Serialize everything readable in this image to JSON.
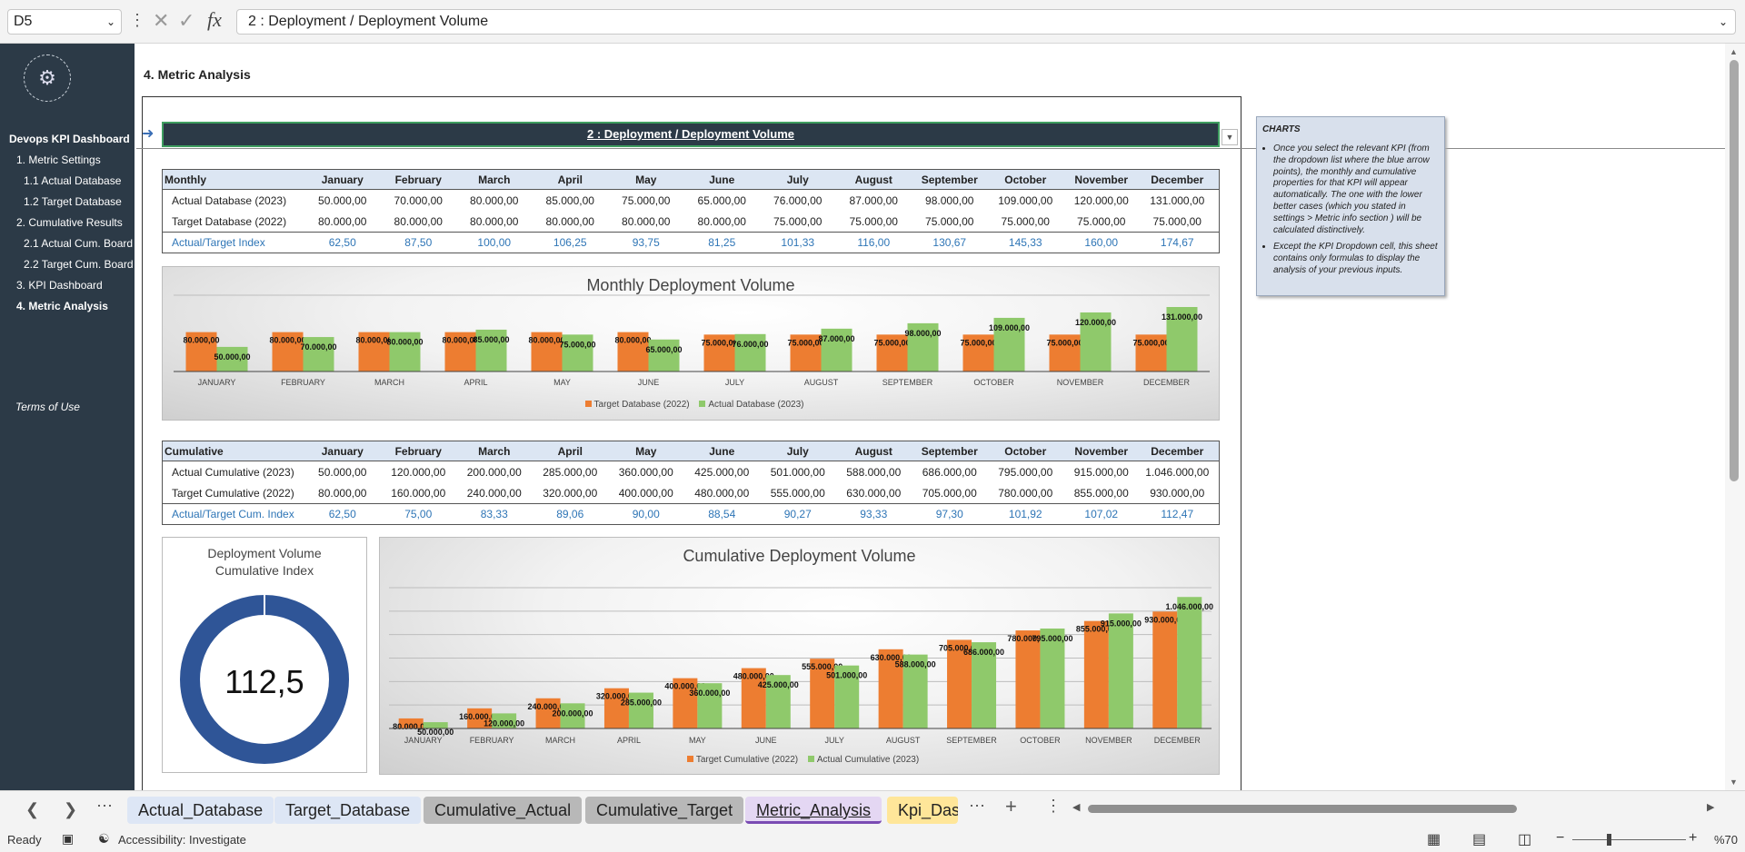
{
  "formula_bar": {
    "name_box": "D5",
    "formula": "2 : Deployment / Deployment Volume"
  },
  "sidebar": {
    "title": "Devops KPI Dashboard",
    "items": [
      {
        "label": "1. Metric Settings",
        "bold": false
      },
      {
        "label": "1.1 Actual Database",
        "bold": false
      },
      {
        "label": "1.2 Target Database",
        "bold": false
      },
      {
        "label": "2. Cumulative Results",
        "bold": false
      },
      {
        "label": "2.1 Actual Cum. Board",
        "bold": false
      },
      {
        "label": "2.2 Target Cum. Board",
        "bold": false
      },
      {
        "label": "3. KPI Dashboard",
        "bold": false
      },
      {
        "label": "4. Metric Analysis",
        "bold": true
      }
    ],
    "terms": "Terms of Use"
  },
  "page": {
    "title": "4. Metric Analysis",
    "kpi_selected": "2 : Deployment / Deployment Volume"
  },
  "months": [
    "January",
    "February",
    "March",
    "April",
    "May",
    "June",
    "July",
    "August",
    "September",
    "October",
    "November",
    "December"
  ],
  "monthly_table": {
    "header": "Monthly",
    "rows": [
      {
        "label": "Actual Database (2023)",
        "values": [
          "50.000,00",
          "70.000,00",
          "80.000,00",
          "85.000,00",
          "75.000,00",
          "65.000,00",
          "76.000,00",
          "87.000,00",
          "98.000,00",
          "109.000,00",
          "120.000,00",
          "131.000,00"
        ]
      },
      {
        "label": "Target Database (2022)",
        "values": [
          "80.000,00",
          "80.000,00",
          "80.000,00",
          "80.000,00",
          "80.000,00",
          "80.000,00",
          "75.000,00",
          "75.000,00",
          "75.000,00",
          "75.000,00",
          "75.000,00",
          "75.000,00"
        ]
      }
    ],
    "index": {
      "label": "Actual/Target Index",
      "values": [
        "62,50",
        "87,50",
        "100,00",
        "106,25",
        "93,75",
        "81,25",
        "101,33",
        "116,00",
        "130,67",
        "145,33",
        "160,00",
        "174,67"
      ]
    }
  },
  "cumulative_table": {
    "header": "Cumulative",
    "rows": [
      {
        "label": "Actual Cumulative (2023)",
        "values": [
          "50.000,00",
          "120.000,00",
          "200.000,00",
          "285.000,00",
          "360.000,00",
          "425.000,00",
          "501.000,00",
          "588.000,00",
          "686.000,00",
          "795.000,00",
          "915.000,00",
          "1.046.000,00"
        ]
      },
      {
        "label": "Target Cumulative (2022)",
        "values": [
          "80.000,00",
          "160.000,00",
          "240.000,00",
          "320.000,00",
          "400.000,00",
          "480.000,00",
          "555.000,00",
          "630.000,00",
          "705.000,00",
          "780.000,00",
          "855.000,00",
          "930.000,00"
        ]
      }
    ],
    "index": {
      "label": "Actual/Target Cum. Index",
      "values": [
        "62,50",
        "75,00",
        "83,33",
        "89,06",
        "90,00",
        "88,54",
        "90,27",
        "93,33",
        "97,30",
        "101,92",
        "107,02",
        "112,47"
      ]
    }
  },
  "chart_data": [
    {
      "type": "bar",
      "title": "Monthly Deployment Volume",
      "categories": [
        "JANUARY",
        "FEBRUARY",
        "MARCH",
        "APRIL",
        "MAY",
        "JUNE",
        "JULY",
        "AUGUST",
        "SEPTEMBER",
        "OCTOBER",
        "NOVEMBER",
        "DECEMBER"
      ],
      "series": [
        {
          "name": "Target Database (2022)",
          "color": "#ed7d31",
          "values": [
            80000,
            80000,
            80000,
            80000,
            80000,
            80000,
            75000,
            75000,
            75000,
            75000,
            75000,
            75000
          ],
          "labels": [
            "80.000,00",
            "80.000,00",
            "80.000,00",
            "80.000,00",
            "80.000,00",
            "80.000,00",
            "75.000,00",
            "75.000,00",
            "75.000,00",
            "75.000,00",
            "75.000,00",
            "75.000,00"
          ]
        },
        {
          "name": "Actual Database (2023)",
          "color": "#8fc96b",
          "values": [
            50000,
            70000,
            80000,
            85000,
            75000,
            65000,
            76000,
            87000,
            98000,
            109000,
            120000,
            131000
          ],
          "labels": [
            "50.000,00",
            "70.000,00",
            "80.000,00",
            "85.000,00",
            "75.000,00",
            "65.000,00",
            "76.000,00",
            "87.000,00",
            "98.000,00",
            "109.000,00",
            "120.000,00",
            "131.000,00"
          ]
        }
      ],
      "legend": "bottom"
    },
    {
      "type": "bar",
      "title": "Cumulative Deployment Volume",
      "categories": [
        "JANUARY",
        "FEBRUARY",
        "MARCH",
        "APRIL",
        "MAY",
        "JUNE",
        "JULY",
        "AUGUST",
        "SEPTEMBER",
        "OCTOBER",
        "NOVEMBER",
        "DECEMBER"
      ],
      "series": [
        {
          "name": "Target Cumulative (2022)",
          "color": "#ed7d31",
          "values": [
            80000,
            160000,
            240000,
            320000,
            400000,
            480000,
            555000,
            630000,
            705000,
            780000,
            855000,
            930000
          ],
          "labels": [
            "80.000,00",
            "160.000,00",
            "240.000,00",
            "320.000,00",
            "400.000,00",
            "480.000,00",
            "555.000,00",
            "630.000,00",
            "705.000,00",
            "780.000,00",
            "855.000,00",
            "930.000,00"
          ]
        },
        {
          "name": "Actual Cumulative (2023)",
          "color": "#8fc96b",
          "values": [
            50000,
            120000,
            200000,
            285000,
            360000,
            425000,
            501000,
            588000,
            686000,
            795000,
            915000,
            1046000
          ],
          "labels": [
            "50.000,00",
            "120.000,00",
            "200.000,00",
            "285.000,00",
            "360.000,00",
            "425.000,00",
            "501.000,00",
            "588.000,00",
            "686.000,00",
            "795.000,00",
            "915.000,00",
            "1.046.000,00"
          ]
        }
      ],
      "legend": "bottom"
    },
    {
      "type": "pie",
      "title": "Deployment Volume Cumulative Index",
      "title_lines": [
        "Deployment Volume",
        "Cumulative Index"
      ],
      "value": "112,5",
      "ring_fill": 1.0,
      "color": "#2f5597"
    }
  ],
  "notes": {
    "title": "CHARTS",
    "bullets": [
      "Once you select the relevant KPI (from the dropdown list where the blue arrow points), the monthly and cumulative properties for that KPI will appear automatically. The one with the lower better cases (which you stated in settings > Metric info section ) will be calculated distinctively.",
      "Except the KPI Dropdown cell, this sheet contains only formulas to display the analysis of your previous inputs."
    ]
  },
  "tabs": [
    {
      "label": "Actual_Database",
      "bg": "#dde6f5",
      "active": false
    },
    {
      "label": "Target_Database",
      "bg": "#dde6f5",
      "active": false
    },
    {
      "label": "Cumulative_Actual",
      "bg": "#b8b8b8",
      "active": false
    },
    {
      "label": "Cumulative_Target",
      "bg": "#b8b8b8",
      "active": false
    },
    {
      "label": "Metric_Analysis",
      "bg": "#e4d7f3",
      "active": true
    },
    {
      "label": "Kpi_Dash",
      "bg": "#ffe699",
      "active": false
    }
  ],
  "status": {
    "ready": "Ready",
    "accessibility": "Accessibility: Investigate",
    "zoom": "%70"
  }
}
